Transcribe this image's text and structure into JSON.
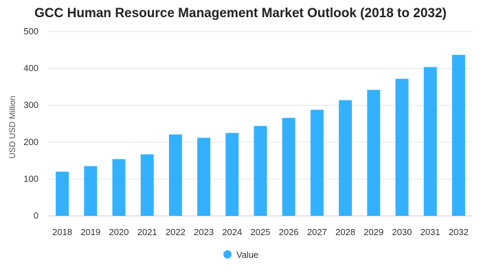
{
  "chart_data": {
    "type": "bar",
    "title": "GCC Human Resource Management Market Outlook (2018 to 2032)",
    "xlabel": "",
    "ylabel": "USD USD Million",
    "categories": [
      "2018",
      "2019",
      "2020",
      "2021",
      "2022",
      "2023",
      "2024",
      "2025",
      "2026",
      "2027",
      "2028",
      "2029",
      "2030",
      "2031",
      "2032"
    ],
    "series": [
      {
        "name": "Value",
        "values": [
          120,
          135,
          154,
          167,
          221,
          212,
          225,
          244,
          266,
          288,
          314,
          342,
          372,
          404,
          437
        ]
      }
    ],
    "ylim": [
      0,
      500
    ],
    "yticks": [
      "0",
      "100",
      "200",
      "300",
      "400",
      "500"
    ],
    "grid": true,
    "legend": "bottom-center",
    "colors": {
      "bar": "#33b1ff",
      "grid": "#e6e6e6",
      "axis": "#cccccc"
    }
  }
}
